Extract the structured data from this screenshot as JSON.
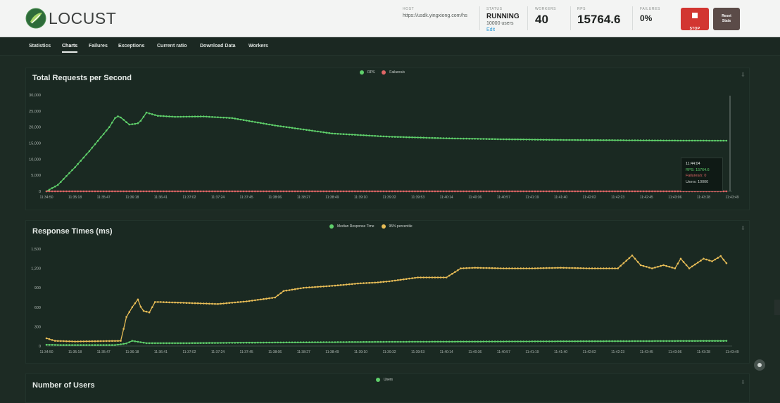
{
  "header": {
    "logo_text": "LOCUST",
    "host_label": "HOST",
    "host_value": "https://usdk.yingxiong.com/hs",
    "status_label": "STATUS",
    "status_value": "RUNNING",
    "status_users": "10000 users",
    "status_edit": "Edit",
    "workers_label": "WORKERS",
    "workers_value": "40",
    "rps_label": "RPS",
    "rps_value": "15764.6",
    "failures_label": "FAILURES",
    "failures_value": "0%",
    "stop_label": "STOP",
    "reset_label": "Reset Stats"
  },
  "nav": {
    "tabs": [
      "Statistics",
      "Charts",
      "Failures",
      "Exceptions",
      "Current ratio",
      "Download Data",
      "Workers"
    ],
    "active": "Charts"
  },
  "charts": {
    "rps": {
      "title": "Total Requests per Second",
      "legend": [
        "RPS",
        "Failures/s"
      ],
      "tooltip": {
        "time": "11:44:04",
        "rps": "RPS: 15764.6",
        "failures": "Failures/s: 0",
        "users": "Users: 10000"
      }
    },
    "response": {
      "title": "Response Times (ms)",
      "legend": [
        "Median Response Time",
        "95% percentile"
      ]
    },
    "users": {
      "title": "Number of Users",
      "legend": [
        "Users"
      ]
    }
  },
  "chart_data": [
    {
      "type": "line",
      "title": "Total Requests per Second",
      "x_ticks": [
        "11:34:50",
        "11:35:18",
        "11:35:47",
        "11:36:18",
        "11:36:41",
        "11:37:02",
        "11:37:24",
        "11:37:45",
        "11:38:06",
        "11:38:27",
        "11:38:49",
        "11:39:10",
        "11:39:32",
        "11:39:53",
        "11:40:14",
        "11:40:36",
        "11:40:57",
        "11:41:19",
        "11:41:40",
        "11:42:02",
        "11:42:23",
        "11:42:45",
        "11:43:06",
        "11:43:28",
        "11:43:49"
      ],
      "y_ticks": [
        "0",
        "5,000",
        "10,000",
        "15,000",
        "20,000",
        "25,000",
        "30,000"
      ],
      "ylim": [
        0,
        30000
      ],
      "legend_position": "top-center",
      "grid": false,
      "series": [
        {
          "name": "RPS",
          "color": "#5fd06b",
          "x": [
            0,
            0.4,
            1,
            1.5,
            2.2,
            2.45,
            2.6,
            2.9,
            3.1,
            3.25,
            3.5,
            3.9,
            4.5,
            5.5,
            6.5,
            8,
            10,
            12,
            14,
            16,
            18,
            20,
            22,
            23.8
          ],
          "y": [
            0,
            2000,
            7500,
            12500,
            20000,
            23500,
            23000,
            20800,
            21000,
            21300,
            24500,
            23500,
            23200,
            23300,
            22800,
            20500,
            18000,
            17000,
            16500,
            16200,
            16000,
            15900,
            15800,
            15764.6
          ]
        },
        {
          "name": "Failures/s",
          "color": "#e06666",
          "x": [
            0,
            23.8
          ],
          "y": [
            0,
            0
          ]
        }
      ]
    },
    {
      "type": "line",
      "title": "Response Times (ms)",
      "x_ticks": [
        "11:34:50",
        "11:35:18",
        "11:35:47",
        "11:36:18",
        "11:36:41",
        "11:37:02",
        "11:37:24",
        "11:37:45",
        "11:38:06",
        "11:38:27",
        "11:38:49",
        "11:39:10",
        "11:39:32",
        "11:39:53",
        "11:40:14",
        "11:40:36",
        "11:40:57",
        "11:41:19",
        "11:41:40",
        "11:42:02",
        "11:42:23",
        "11:42:45",
        "11:43:06",
        "11:43:28",
        "11:43:49"
      ],
      "y_ticks": [
        "0",
        "300",
        "600",
        "900",
        "1,200",
        "1,500"
      ],
      "ylim": [
        0,
        1500
      ],
      "legend_position": "top-center",
      "grid": false,
      "series": [
        {
          "name": "Median Response Time",
          "color": "#5fd06b",
          "x": [
            0,
            0.5,
            2.4,
            2.8,
            3.0,
            3.3,
            3.5,
            5,
            8,
            12,
            16,
            20,
            23.8
          ],
          "y": [
            20,
            15,
            15,
            40,
            80,
            60,
            45,
            45,
            55,
            65,
            70,
            75,
            80
          ]
        },
        {
          "name": "95% percentile",
          "color": "#e8bd57",
          "x": [
            0,
            0.3,
            1,
            2.6,
            2.8,
            3.0,
            3.2,
            3.35,
            3.6,
            3.8,
            4,
            6,
            7,
            8,
            8.3,
            9,
            10,
            11,
            11.5,
            12,
            12.5,
            13,
            14,
            14.5,
            15,
            16,
            17,
            18,
            19,
            20,
            20.5,
            20.8,
            21.2,
            21.6,
            22,
            22.2,
            22.5,
            23,
            23.3,
            23.6,
            23.8
          ],
          "y": [
            120,
            80,
            70,
            80,
            450,
            600,
            720,
            550,
            520,
            680,
            680,
            650,
            690,
            750,
            850,
            900,
            930,
            970,
            980,
            1000,
            1030,
            1060,
            1060,
            1200,
            1210,
            1200,
            1200,
            1210,
            1200,
            1200,
            1400,
            1250,
            1200,
            1250,
            1200,
            1350,
            1200,
            1350,
            1310,
            1390,
            1280
          ]
        }
      ]
    }
  ]
}
